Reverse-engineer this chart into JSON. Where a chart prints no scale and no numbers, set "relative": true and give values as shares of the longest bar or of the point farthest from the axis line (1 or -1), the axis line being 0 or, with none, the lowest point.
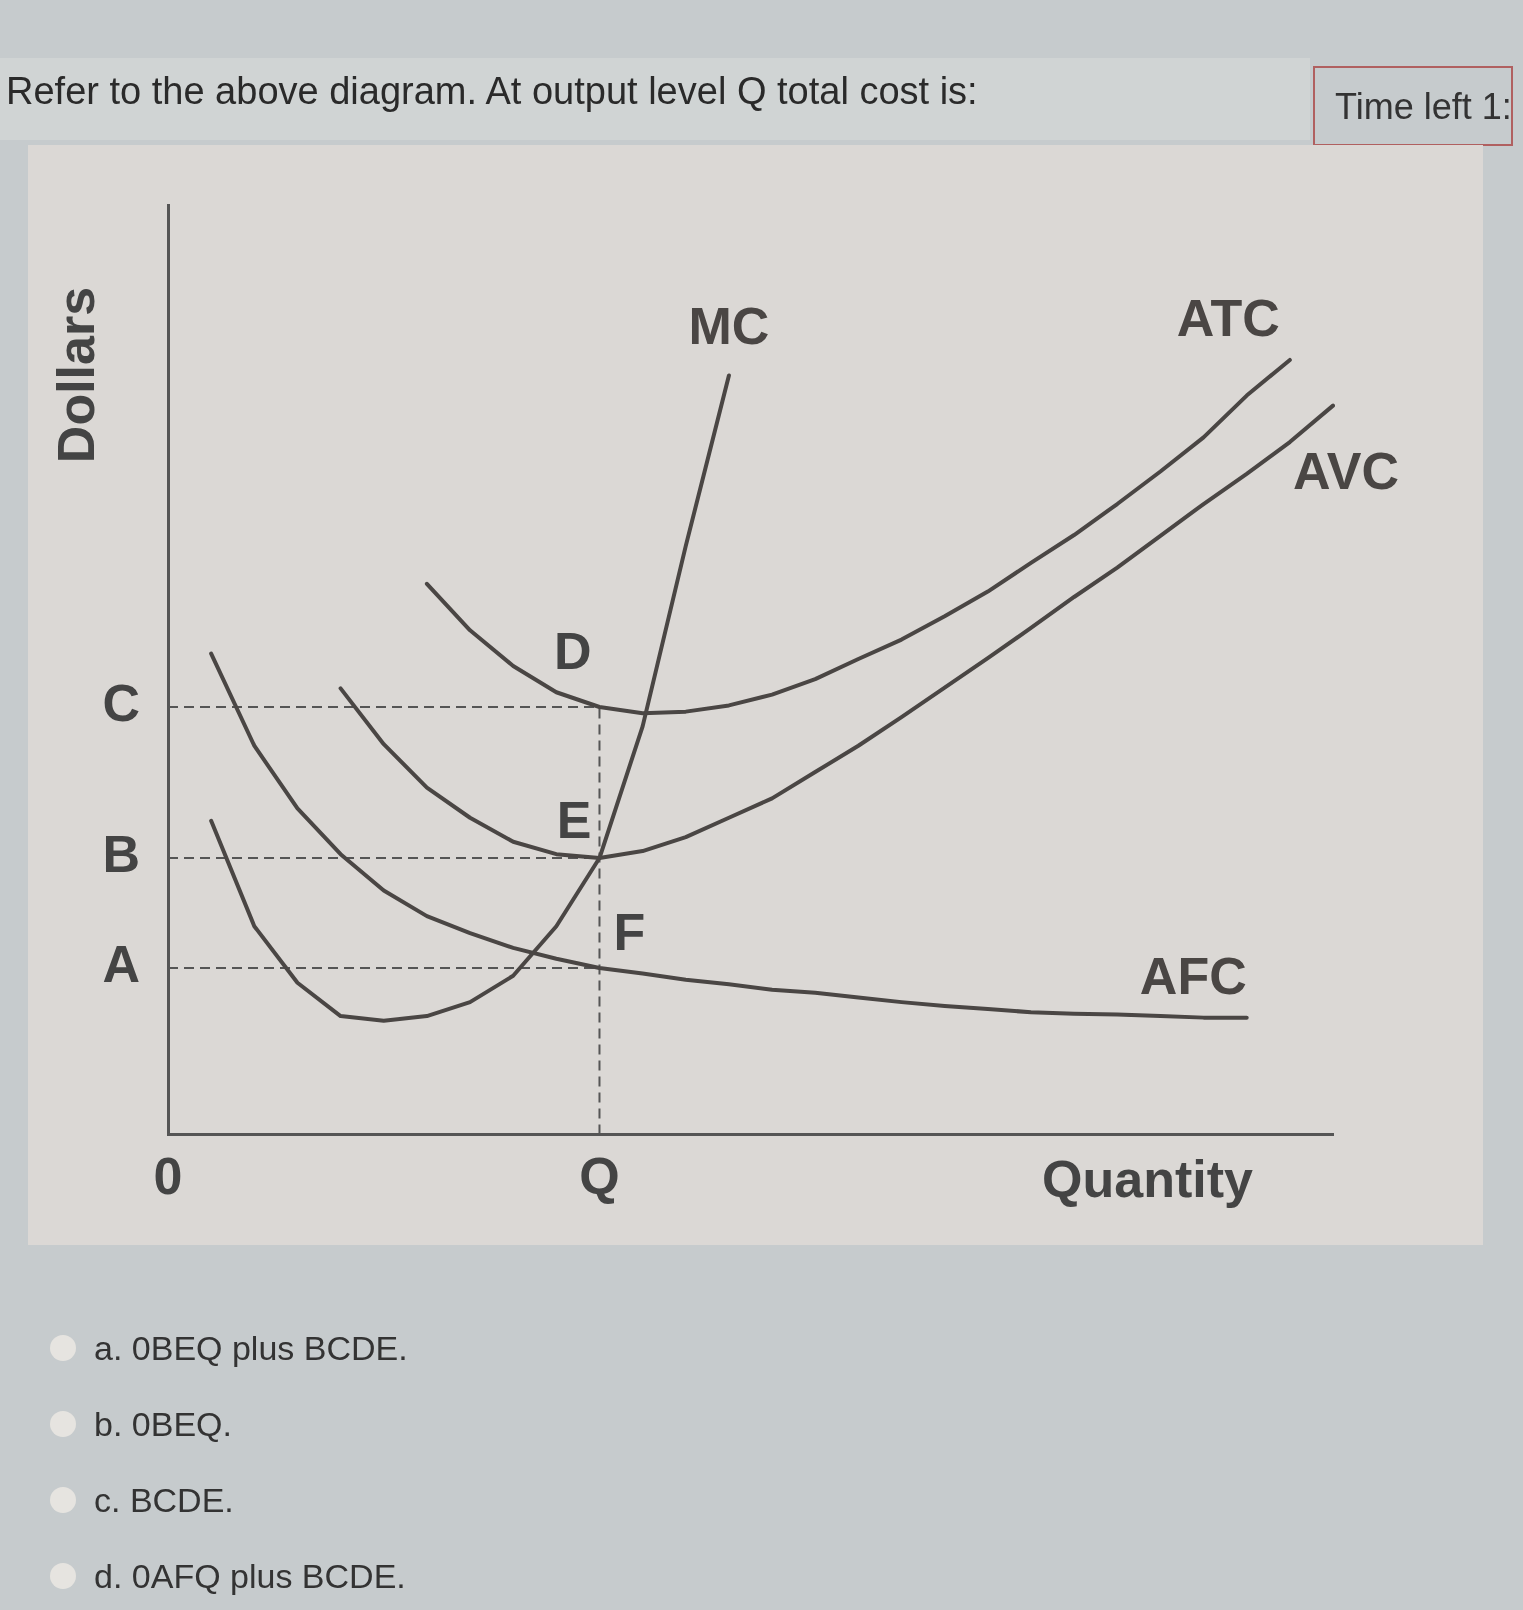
{
  "chart_data": {
    "type": "line",
    "title": "Refer to the above diagram. At output level Q total cost is:",
    "ylabel": "Dollars",
    "xlabel": "Quantity",
    "relative": true,
    "grid": false,
    "legend": false,
    "marker": "none",
    "line_style": "solid",
    "categories": [
      "0",
      null,
      null,
      null,
      null,
      null,
      null,
      null,
      null,
      null,
      "Q",
      null,
      null,
      null,
      null,
      null,
      null,
      null,
      null,
      null,
      null,
      null,
      null,
      null,
      null,
      null,
      null,
      null
    ],
    "series": [
      {
        "name": "MC",
        "color": "#4a4644",
        "values": [
          null,
          0.405,
          0.269,
          0.196,
          0.153,
          0.147,
          0.153,
          0.171,
          0.205,
          0.269,
          0.357,
          0.527,
          0.76,
          0.98,
          null,
          null,
          null,
          null,
          null,
          null,
          null,
          null,
          null,
          null,
          null,
          null,
          null,
          null
        ]
      },
      {
        "name": "ATC",
        "color": "#4a4644",
        "values": [
          null,
          null,
          null,
          null,
          null,
          null,
          0.711,
          0.651,
          0.605,
          0.571,
          0.552,
          0.544,
          0.546,
          0.554,
          0.568,
          0.588,
          0.614,
          0.639,
          0.669,
          0.701,
          0.738,
          0.774,
          0.814,
          0.856,
          0.9,
          0.954,
          1,
          null
        ]
      },
      {
        "name": "AVC",
        "color": "#4a4644",
        "values": [
          null,
          null,
          null,
          null,
          0.576,
          0.504,
          0.448,
          0.409,
          0.378,
          0.362,
          0.357,
          0.366,
          0.384,
          0.409,
          0.434,
          0.468,
          0.502,
          0.539,
          0.577,
          0.615,
          0.654,
          0.694,
          0.732,
          0.773,
          0.814,
          0.853,
          0.894,
          0.941
        ]
      },
      {
        "name": "AFC",
        "color": "#4a4644",
        "values": [
          null,
          0.621,
          0.502,
          0.421,
          0.362,
          0.315,
          0.282,
          0.26,
          0.241,
          0.227,
          0.215,
          0.208,
          0.2,
          0.194,
          0.187,
          0.183,
          0.177,
          0.171,
          0.166,
          0.162,
          0.158,
          0.156,
          0.155,
          0.153,
          0.151,
          0.151,
          null,
          null
        ]
      }
    ],
    "ref_lines": [
      {
        "axis": "y",
        "value": 0.552,
        "label": "C",
        "color": "#555555",
        "line_style": "dashed"
      },
      {
        "axis": "y",
        "value": 0.357,
        "label": "B",
        "color": "#555555",
        "line_style": "dashed"
      },
      {
        "axis": "y",
        "value": 0.215,
        "label": "A",
        "color": "#555555",
        "line_style": "dashed"
      },
      {
        "axis": "x",
        "value": "Q",
        "color": "#555555",
        "line_style": "dashed"
      }
    ],
    "annotations": [
      {
        "text": "D",
        "x": "Q",
        "y": 0.552
      },
      {
        "text": "E",
        "x": "Q",
        "y": 0.357
      },
      {
        "text": "F",
        "x": "Q",
        "y": 0.215
      },
      "Time left 1:",
      "a.  0BEQ plus BCDE.",
      "b.  0BEQ.",
      "c.  BCDE.",
      "d.  0AFQ plus BCDE."
    ]
  }
}
